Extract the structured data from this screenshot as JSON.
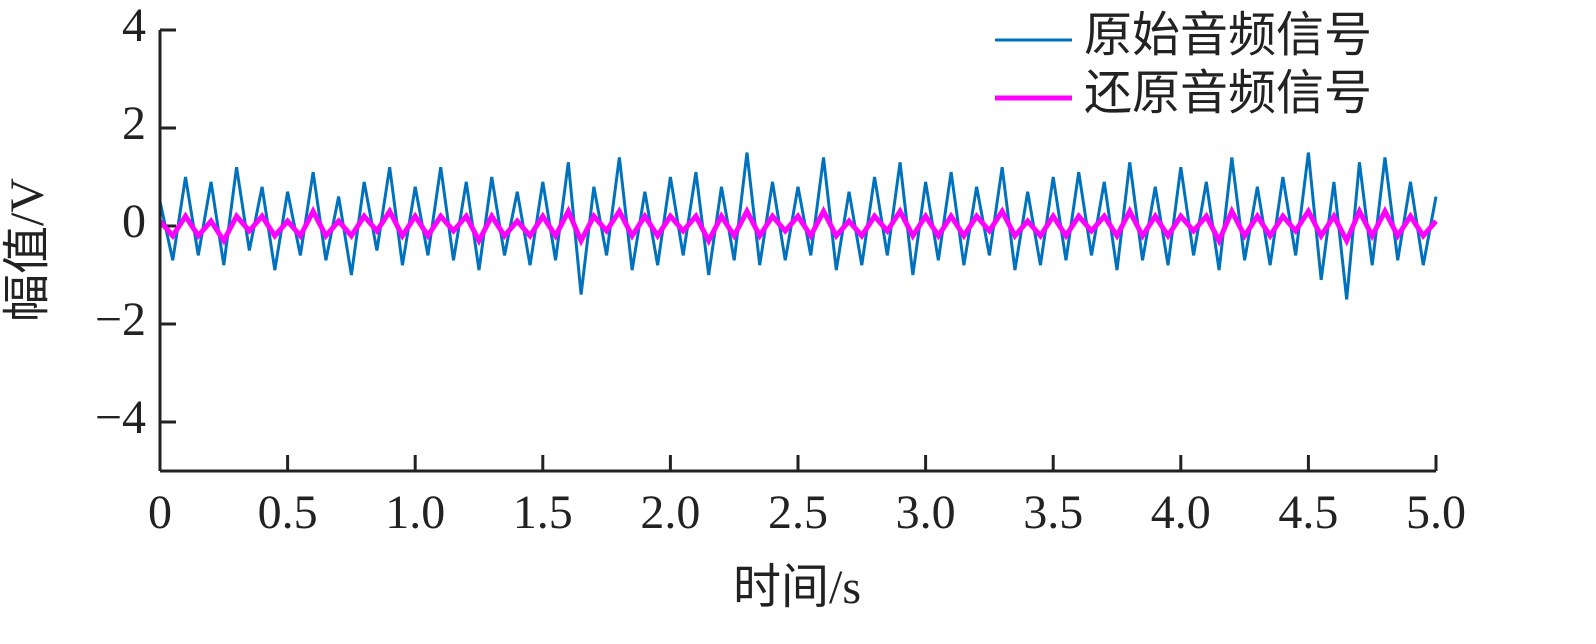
{
  "chart_data": {
    "type": "line",
    "xlabel": "时间/s",
    "ylabel": "幅值/V",
    "x": [
      0,
      0.05,
      0.1,
      0.15,
      0.2,
      0.25,
      0.3,
      0.35,
      0.4,
      0.45,
      0.5,
      0.55,
      0.6,
      0.65,
      0.7,
      0.75,
      0.8,
      0.85,
      0.9,
      0.95,
      1,
      1.05,
      1.1,
      1.15,
      1.2,
      1.25,
      1.3,
      1.35,
      1.4,
      1.45,
      1.5,
      1.55,
      1.6,
      1.65,
      1.7,
      1.75,
      1.8,
      1.85,
      1.9,
      1.95,
      2,
      2.05,
      2.1,
      2.15,
      2.2,
      2.25,
      2.3,
      2.35,
      2.4,
      2.45,
      2.5,
      2.55,
      2.6,
      2.65,
      2.7,
      2.75,
      2.8,
      2.85,
      2.9,
      2.95,
      3,
      3.05,
      3.1,
      3.15,
      3.2,
      3.25,
      3.3,
      3.35,
      3.4,
      3.45,
      3.5,
      3.55,
      3.6,
      3.65,
      3.7,
      3.75,
      3.8,
      3.85,
      3.9,
      3.95,
      4,
      4.05,
      4.1,
      4.15,
      4.2,
      4.25,
      4.3,
      4.35,
      4.4,
      4.45,
      4.5,
      4.55,
      4.6,
      4.65,
      4.7,
      4.75,
      4.8,
      4.85,
      4.9,
      4.95,
      5
    ],
    "series": [
      {
        "name": "原始音频信号",
        "color": "#0072bd",
        "values": [
          0.5,
          -0.7,
          1.0,
          -0.6,
          0.9,
          -0.8,
          1.2,
          -0.5,
          0.8,
          -0.9,
          0.7,
          -0.6,
          1.1,
          -0.7,
          0.6,
          -1.0,
          0.9,
          -0.5,
          1.2,
          -0.8,
          0.8,
          -0.6,
          1.2,
          -0.7,
          0.9,
          -0.9,
          1.0,
          -0.6,
          0.7,
          -0.8,
          0.9,
          -0.7,
          1.3,
          -1.4,
          0.8,
          -0.6,
          1.4,
          -0.9,
          0.7,
          -0.8,
          1.0,
          -0.6,
          1.1,
          -1.0,
          0.8,
          -0.7,
          1.5,
          -0.8,
          0.9,
          -0.7,
          0.8,
          -0.6,
          1.4,
          -0.9,
          0.7,
          -0.8,
          1.0,
          -0.6,
          1.3,
          -1.0,
          0.9,
          -0.7,
          1.1,
          -0.8,
          0.8,
          -0.6,
          1.2,
          -0.9,
          0.7,
          -0.8,
          1.0,
          -0.7,
          1.1,
          -0.6,
          0.9,
          -0.9,
          1.3,
          -0.7,
          0.8,
          -0.8,
          1.2,
          -0.6,
          0.9,
          -0.9,
          1.4,
          -0.7,
          0.8,
          -0.8,
          1.0,
          -0.6,
          1.5,
          -1.1,
          0.9,
          -1.5,
          1.3,
          -0.8,
          1.4,
          -0.7,
          0.9,
          -0.8,
          0.6
        ]
      },
      {
        "name": "还原音频信号",
        "color": "#ff00ff",
        "values": [
          0.1,
          -0.2,
          0.2,
          -0.2,
          0.1,
          -0.3,
          0.2,
          -0.1,
          0.2,
          -0.2,
          0.1,
          -0.2,
          0.3,
          -0.2,
          0.1,
          -0.2,
          0.2,
          -0.1,
          0.3,
          -0.2,
          0.2,
          -0.2,
          0.2,
          -0.1,
          0.2,
          -0.3,
          0.2,
          -0.2,
          0.1,
          -0.2,
          0.2,
          -0.2,
          0.3,
          -0.3,
          0.2,
          -0.1,
          0.3,
          -0.2,
          0.2,
          -0.2,
          0.2,
          -0.1,
          0.2,
          -0.3,
          0.2,
          -0.2,
          0.3,
          -0.2,
          0.2,
          -0.1,
          0.2,
          -0.2,
          0.3,
          -0.2,
          0.1,
          -0.2,
          0.2,
          -0.1,
          0.3,
          -0.2,
          0.2,
          -0.2,
          0.2,
          -0.2,
          0.2,
          -0.1,
          0.3,
          -0.2,
          0.1,
          -0.2,
          0.2,
          -0.2,
          0.2,
          -0.1,
          0.2,
          -0.2,
          0.3,
          -0.2,
          0.2,
          -0.2,
          0.2,
          -0.1,
          0.2,
          -0.3,
          0.3,
          -0.2,
          0.2,
          -0.2,
          0.2,
          -0.1,
          0.3,
          -0.2,
          0.2,
          -0.3,
          0.3,
          -0.2,
          0.3,
          -0.2,
          0.2,
          -0.2,
          0.1
        ]
      }
    ],
    "xlim": [
      0,
      5
    ],
    "xticks": [
      0,
      0.5,
      {
        "value": 1,
        "label": "1.0"
      },
      1.5,
      {
        "value": 2,
        "label": "2.0"
      },
      2.5,
      {
        "value": 3,
        "label": "3.0"
      },
      3.5,
      {
        "value": 4,
        "label": "4.0"
      },
      4.5,
      {
        "value": 5,
        "label": "5.0"
      }
    ],
    "ylim": [
      -5,
      4
    ],
    "yticks": [
      {
        "value": -4,
        "label": "−4"
      },
      {
        "value": -2,
        "label": "−2"
      },
      0,
      2,
      4
    ],
    "legend": "upper right"
  }
}
